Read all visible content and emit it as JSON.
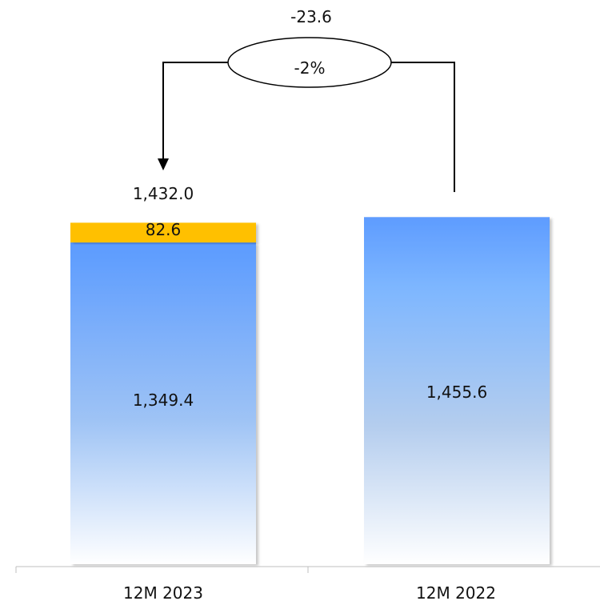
{
  "chart_data": {
    "type": "bar",
    "stacked": true,
    "categories": [
      "12M 2023",
      "12M 2022"
    ],
    "series": [
      {
        "values": [
          1349.4,
          1455.6
        ],
        "color": "#5b9bff"
      },
      {
        "values": [
          82.6,
          0
        ],
        "color": "#ffc000"
      }
    ],
    "data_labels": {
      "segments": [
        [
          "1,349.4",
          "82.6"
        ],
        [
          "1,455.6",
          ""
        ]
      ],
      "totals": [
        "1,432.0",
        ""
      ]
    },
    "ylim": [
      0,
      1470
    ],
    "grid": false,
    "annotation": {
      "from": "12M 2022",
      "to": "12M 2023",
      "change": "-23.6",
      "percent": "-2%"
    }
  }
}
